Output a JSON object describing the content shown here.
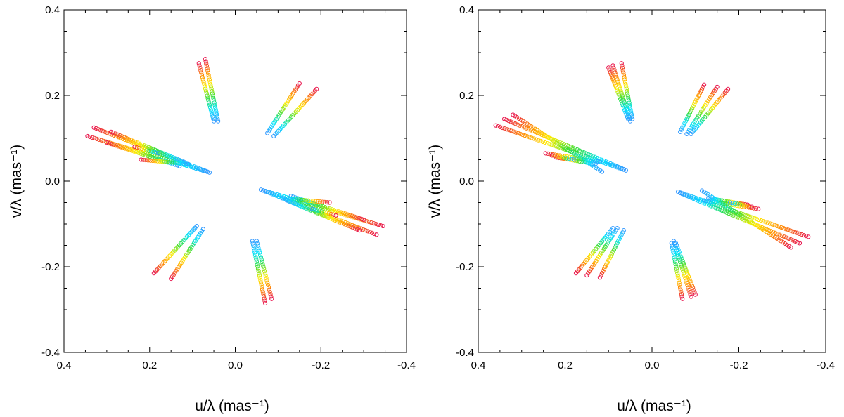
{
  "chart_data": [
    {
      "type": "scatter",
      "panel": "left",
      "xlabel": "u/λ (mas⁻¹)",
      "ylabel": "v/λ (mas⁻¹)",
      "xlim": [
        0.4,
        -0.4
      ],
      "ylim": [
        -0.4,
        0.4
      ],
      "xticks": [
        "0.4",
        "0.2",
        "0.0",
        "-0.2",
        "-0.4"
      ],
      "yticks": [
        "0.4",
        "0.2",
        "0.0",
        "-0.2",
        "-0.4"
      ],
      "grid": false,
      "color_scale": [
        "#3399ff",
        "#00e5ff",
        "#33dd33",
        "#ffee00",
        "#ff8800",
        "#e8154e"
      ],
      "tracks": [
        {
          "from": [
            0.06,
            0.02
          ],
          "to": [
            0.345,
            0.105
          ]
        },
        {
          "from": [
            0.065,
            0.022
          ],
          "to": [
            0.33,
            0.125
          ]
        },
        {
          "from": [
            0.13,
            0.035
          ],
          "to": [
            0.3,
            0.09
          ]
        },
        {
          "from": [
            0.12,
            0.045
          ],
          "to": [
            0.29,
            0.115
          ]
        },
        {
          "from": [
            0.11,
            0.04
          ],
          "to": [
            0.22,
            0.05
          ]
        },
        {
          "from": [
            0.18,
            0.065
          ],
          "to": [
            0.235,
            0.08
          ]
        },
        {
          "from": [
            0.04,
            0.14
          ],
          "to": [
            0.07,
            0.285
          ]
        },
        {
          "from": [
            0.05,
            0.14
          ],
          "to": [
            0.085,
            0.275
          ]
        },
        {
          "from": [
            -0.075,
            0.112
          ],
          "to": [
            -0.15,
            0.228
          ]
        },
        {
          "from": [
            -0.09,
            0.105
          ],
          "to": [
            -0.19,
            0.215
          ]
        },
        {
          "from": [
            -0.06,
            -0.02
          ],
          "to": [
            -0.345,
            -0.105
          ]
        },
        {
          "from": [
            -0.065,
            -0.022
          ],
          "to": [
            -0.33,
            -0.125
          ]
        },
        {
          "from": [
            -0.13,
            -0.035
          ],
          "to": [
            -0.3,
            -0.09
          ]
        },
        {
          "from": [
            -0.12,
            -0.045
          ],
          "to": [
            -0.29,
            -0.115
          ]
        },
        {
          "from": [
            -0.11,
            -0.04
          ],
          "to": [
            -0.22,
            -0.05
          ]
        },
        {
          "from": [
            -0.18,
            -0.065
          ],
          "to": [
            -0.235,
            -0.08
          ]
        },
        {
          "from": [
            -0.04,
            -0.14
          ],
          "to": [
            -0.07,
            -0.285
          ]
        },
        {
          "from": [
            -0.05,
            -0.14
          ],
          "to": [
            -0.085,
            -0.275
          ]
        },
        {
          "from": [
            0.075,
            -0.112
          ],
          "to": [
            0.15,
            -0.228
          ]
        },
        {
          "from": [
            0.09,
            -0.105
          ],
          "to": [
            0.19,
            -0.215
          ]
        }
      ]
    },
    {
      "type": "scatter",
      "panel": "right",
      "xlabel": "u/λ (mas⁻¹)",
      "ylabel": "v/λ (mas⁻¹)",
      "xlim": [
        0.4,
        -0.4
      ],
      "ylim": [
        -0.4,
        0.4
      ],
      "xticks": [
        "0.4",
        "0.2",
        "0.0",
        "-0.2",
        "-0.4"
      ],
      "yticks": [
        "0.4",
        "0.2",
        "0.0",
        "-0.2",
        "-0.4"
      ],
      "grid": false,
      "color_scale": [
        "#3399ff",
        "#00e5ff",
        "#33dd33",
        "#ffee00",
        "#ff8800",
        "#e8154e"
      ],
      "tracks": [
        {
          "from": [
            0.06,
            0.025
          ],
          "to": [
            0.36,
            0.13
          ]
        },
        {
          "from": [
            0.065,
            0.028
          ],
          "to": [
            0.34,
            0.145
          ]
        },
        {
          "from": [
            0.115,
            0.022
          ],
          "to": [
            0.32,
            0.155
          ]
        },
        {
          "from": [
            0.13,
            0.04
          ],
          "to": [
            0.22,
            0.055
          ]
        },
        {
          "from": [
            0.12,
            0.045
          ],
          "to": [
            0.245,
            0.065
          ]
        },
        {
          "from": [
            0.18,
            0.05
          ],
          "to": [
            0.23,
            0.06
          ]
        },
        {
          "from": [
            0.05,
            0.14
          ],
          "to": [
            0.09,
            0.27
          ]
        },
        {
          "from": [
            0.055,
            0.145
          ],
          "to": [
            0.1,
            0.265
          ]
        },
        {
          "from": [
            0.045,
            0.145
          ],
          "to": [
            0.07,
            0.275
          ]
        },
        {
          "from": [
            -0.065,
            0.115
          ],
          "to": [
            -0.12,
            0.225
          ]
        },
        {
          "from": [
            -0.08,
            0.11
          ],
          "to": [
            -0.15,
            0.22
          ]
        },
        {
          "from": [
            -0.09,
            0.11
          ],
          "to": [
            -0.175,
            0.215
          ]
        },
        {
          "from": [
            -0.06,
            -0.025
          ],
          "to": [
            -0.36,
            -0.13
          ]
        },
        {
          "from": [
            -0.065,
            -0.028
          ],
          "to": [
            -0.34,
            -0.145
          ]
        },
        {
          "from": [
            -0.115,
            -0.022
          ],
          "to": [
            -0.32,
            -0.155
          ]
        },
        {
          "from": [
            -0.13,
            -0.04
          ],
          "to": [
            -0.22,
            -0.055
          ]
        },
        {
          "from": [
            -0.12,
            -0.045
          ],
          "to": [
            -0.245,
            -0.065
          ]
        },
        {
          "from": [
            -0.18,
            -0.05
          ],
          "to": [
            -0.23,
            -0.06
          ]
        },
        {
          "from": [
            -0.05,
            -0.14
          ],
          "to": [
            -0.09,
            -0.27
          ]
        },
        {
          "from": [
            -0.055,
            -0.145
          ],
          "to": [
            -0.1,
            -0.265
          ]
        },
        {
          "from": [
            -0.045,
            -0.145
          ],
          "to": [
            -0.07,
            -0.275
          ]
        },
        {
          "from": [
            0.065,
            -0.115
          ],
          "to": [
            0.12,
            -0.225
          ]
        },
        {
          "from": [
            0.08,
            -0.11
          ],
          "to": [
            0.15,
            -0.22
          ]
        },
        {
          "from": [
            0.09,
            -0.11
          ],
          "to": [
            0.175,
            -0.215
          ]
        }
      ]
    }
  ]
}
